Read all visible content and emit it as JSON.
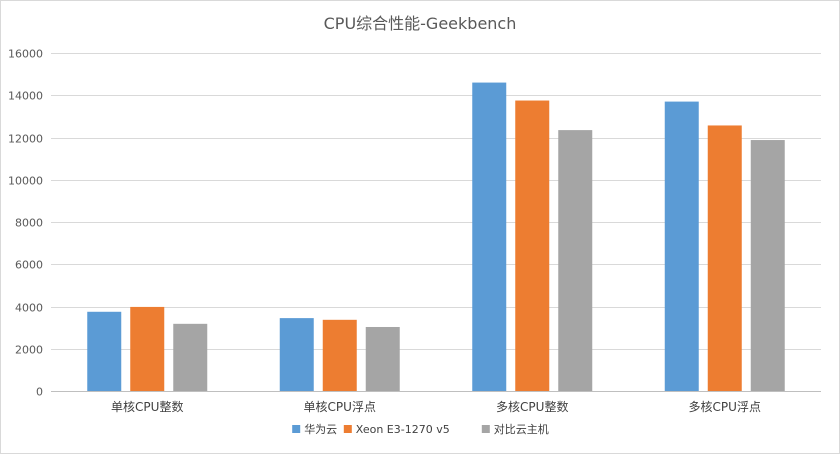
{
  "chart_data": {
    "type": "bar",
    "title": "CPU综合性能-Geekbench",
    "xlabel": "",
    "ylabel": "",
    "categories": [
      "单核CPU整数",
      "单核CPU浮点",
      "多核CPU整数",
      "多核CPU浮点"
    ],
    "series": [
      {
        "name": "华为云",
        "color": "#5b9bd5",
        "values": [
          3750,
          3450,
          14600,
          13700
        ]
      },
      {
        "name": "Xeon E3-1270 v5",
        "color": "#ed7d31",
        "values": [
          3980,
          3370,
          13750,
          12570
        ]
      },
      {
        "name": "对比云主机",
        "color": "#a5a5a5",
        "values": [
          3180,
          3030,
          12350,
          11880
        ]
      }
    ],
    "ylim": [
      0,
      16000
    ],
    "yticks": [
      0,
      2000,
      4000,
      6000,
      8000,
      10000,
      12000,
      14000,
      16000
    ],
    "grid": true,
    "legend_position": "bottom"
  }
}
